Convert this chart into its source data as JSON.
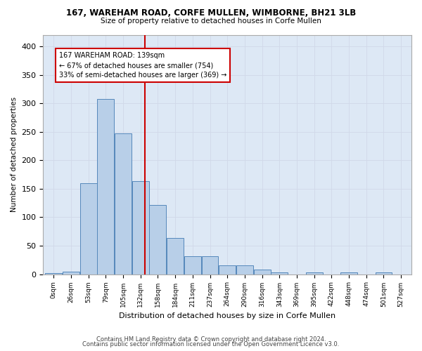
{
  "title_line1": "167, WAREHAM ROAD, CORFE MULLEN, WIMBORNE, BH21 3LB",
  "title_line2": "Size of property relative to detached houses in Corfe Mullen",
  "xlabel": "Distribution of detached houses by size in Corfe Mullen",
  "ylabel": "Number of detached properties",
  "footer_line1": "Contains HM Land Registry data © Crown copyright and database right 2024.",
  "footer_line2": "Contains public sector information licensed under the Open Government Licence v3.0.",
  "bin_labels": [
    "0sqm",
    "26sqm",
    "53sqm",
    "79sqm",
    "105sqm",
    "132sqm",
    "158sqm",
    "184sqm",
    "211sqm",
    "237sqm",
    "264sqm",
    "290sqm",
    "316sqm",
    "343sqm",
    "369sqm",
    "395sqm",
    "422sqm",
    "448sqm",
    "474sqm",
    "501sqm",
    "527sqm"
  ],
  "bar_heights": [
    2,
    5,
    160,
    308,
    247,
    163,
    121,
    64,
    31,
    31,
    15,
    15,
    8,
    3,
    0,
    3,
    0,
    3,
    0,
    3,
    0
  ],
  "bar_color": "#b8cfe8",
  "bar_edge_color": "#5588bb",
  "vline_x_index": 5.1,
  "vline_color": "#cc0000",
  "annotation_text": "167 WAREHAM ROAD: 139sqm\n← 67% of detached houses are smaller (754)\n33% of semi-detached houses are larger (369) →",
  "annotation_box_color": "#ffffff",
  "annotation_box_edge_color": "#cc0000",
  "grid_color": "#d0d8e8",
  "background_color": "#dde8f5",
  "fig_background_color": "#ffffff",
  "ylim": [
    0,
    420
  ],
  "yticks": [
    0,
    50,
    100,
    150,
    200,
    250,
    300,
    350,
    400
  ],
  "bin_width": 26,
  "n_bars": 21
}
